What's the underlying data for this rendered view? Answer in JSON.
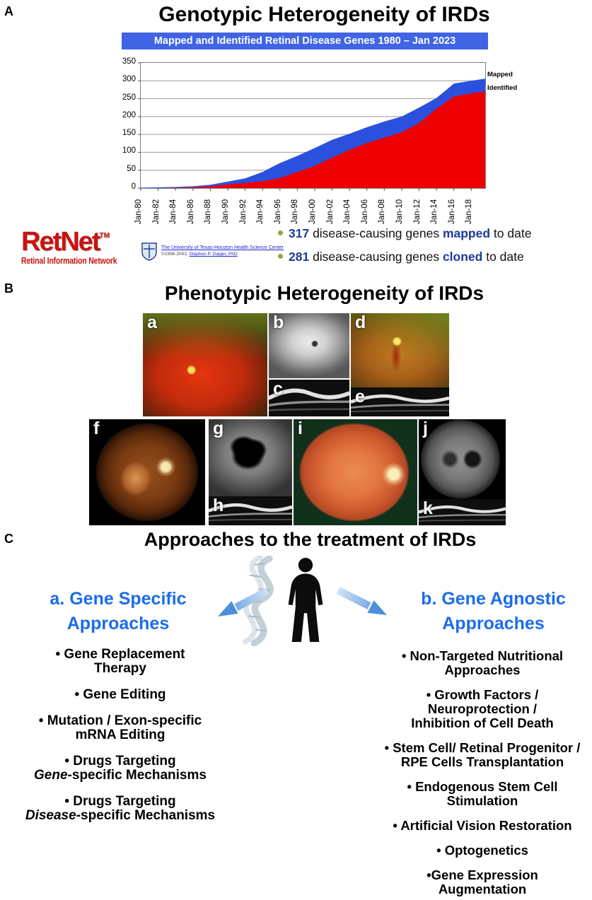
{
  "panelA": {
    "label": "A",
    "title": "Genotypic Heterogeneity of IRDs",
    "banner": "Mapped and Identified Retinal Disease Genes 1980 – Jan 2023",
    "retnet": {
      "name": "RetNet",
      "tm": "TM",
      "subtitle": "Retinal Information Network",
      "affiliation": "The University of Texas-Houston Health Science Center",
      "copyright": "©1996-2003, ",
      "author": "Stephen P. Daiger, PhD"
    },
    "bullets": [
      {
        "num": "317",
        "mid": " disease-causing genes ",
        "key": "mapped",
        "tail": " to date"
      },
      {
        "num": "281",
        "mid": " disease-causing genes ",
        "key": "cloned",
        "tail": " to date"
      }
    ]
  },
  "chart_data": {
    "type": "area",
    "title": "Mapped and Identified Retinal Disease Genes 1980 – Jan 2023",
    "xlabel": "",
    "ylabel": "",
    "xlim": [
      1980,
      2019.6
    ],
    "ylim": [
      0,
      350
    ],
    "grid": true,
    "legend_position": "right",
    "yticks": [
      0,
      50,
      100,
      150,
      200,
      250,
      300,
      350
    ],
    "xticks": [
      1980,
      1982,
      1984,
      1986,
      1988,
      1990,
      1992,
      1994,
      1996,
      1998,
      2000,
      2002,
      2004,
      2006,
      2008,
      2010,
      2012,
      2014,
      2016,
      2018
    ],
    "xtick_labels": [
      "Jan-80",
      "Jan-82",
      "Jan-84",
      "Jan-86",
      "Jan-88",
      "Jan-90",
      "Jan-92",
      "Jan-94",
      "Jan-96",
      "Jan-98",
      "Jan-00",
      "Jan-02",
      "Jan-04",
      "Jan-06",
      "Jan-08",
      "Jan-10",
      "Jan-12",
      "Jan-14",
      "Jan-16",
      "Jan-18"
    ],
    "x": [
      1980,
      1982,
      1984,
      1986,
      1988,
      1990,
      1992,
      1994,
      1996,
      1998,
      2000,
      2002,
      2004,
      2006,
      2008,
      2010,
      2012,
      2014,
      2016,
      2018,
      2019.6
    ],
    "series": [
      {
        "name": "Mapped",
        "color": "#2b50dd",
        "values": [
          1,
          2,
          3,
          5,
          9,
          18,
          27,
          45,
          70,
          90,
          112,
          135,
          152,
          170,
          186,
          200,
          225,
          252,
          292,
          300,
          306
        ]
      },
      {
        "name": "Identified",
        "color": "#ee0000",
        "values": [
          0,
          0,
          1,
          2,
          5,
          10,
          14,
          19,
          28,
          45,
          62,
          85,
          107,
          126,
          141,
          156,
          182,
          222,
          256,
          265,
          271
        ]
      }
    ]
  },
  "panelB": {
    "label": "B",
    "title": "Phenotypic Heterogeneity of IRDs",
    "images": [
      {
        "id": "a",
        "kind": "wide-field color fundus photograph"
      },
      {
        "id": "b",
        "kind": "fundus autofluorescence image"
      },
      {
        "id": "c",
        "kind": "OCT scan"
      },
      {
        "id": "d",
        "kind": "wide-field color fundus photograph"
      },
      {
        "id": "e",
        "kind": "OCT scan"
      },
      {
        "id": "f",
        "kind": "color fundus photograph"
      },
      {
        "id": "g",
        "kind": "fundus autofluorescence image"
      },
      {
        "id": "h",
        "kind": "OCT scan"
      },
      {
        "id": "i",
        "kind": "color fundus photograph"
      },
      {
        "id": "j",
        "kind": "fundus autofluorescence image"
      },
      {
        "id": "k",
        "kind": "OCT scan"
      }
    ]
  },
  "panelC": {
    "label": "C",
    "title": "Approaches to the treatment of IRDs",
    "left": {
      "heading_lines": [
        "a. Gene Specific",
        "Approaches"
      ],
      "items": [
        {
          "lines": [
            [
              "• Gene Replacement"
            ],
            [
              "Therapy"
            ]
          ]
        },
        {
          "lines": [
            [
              "• Gene Editing"
            ]
          ]
        },
        {
          "lines": [
            [
              "• Mutation / Exon-specific"
            ],
            [
              "mRNA Editing"
            ]
          ]
        },
        {
          "lines": [
            [
              "• Drugs Targeting"
            ],
            [
              {
                "i": "Gene"
              },
              "-specific Mechanisms"
            ]
          ]
        },
        {
          "lines": [
            [
              "• Drugs Targeting"
            ],
            [
              {
                "i": "Disease"
              },
              "-specific Mechanisms"
            ]
          ]
        }
      ]
    },
    "right": {
      "heading_lines": [
        "b. Gene Agnostic",
        "Approaches"
      ],
      "items": [
        {
          "lines": [
            [
              "• Non-Targeted Nutritional"
            ],
            [
              "Approaches"
            ]
          ]
        },
        {
          "lines": [
            [
              "• Growth Factors /"
            ],
            [
              "Neuroprotection /"
            ],
            [
              "Inhibition of Cell Death"
            ]
          ]
        },
        {
          "lines": [
            [
              "• Stem Cell/ Retinal Progenitor /"
            ],
            [
              "RPE Cells Transplantation"
            ]
          ]
        },
        {
          "lines": [
            [
              "• Endogenous Stem Cell"
            ],
            [
              "Stimulation"
            ]
          ]
        },
        {
          "lines": [
            [
              "• Artificial Vision Restoration"
            ]
          ]
        },
        {
          "lines": [
            [
              "• Optogenetics"
            ]
          ]
        },
        {
          "lines": [
            [
              "•Gene Expression"
            ],
            [
              "Augmentation"
            ]
          ]
        }
      ]
    }
  }
}
